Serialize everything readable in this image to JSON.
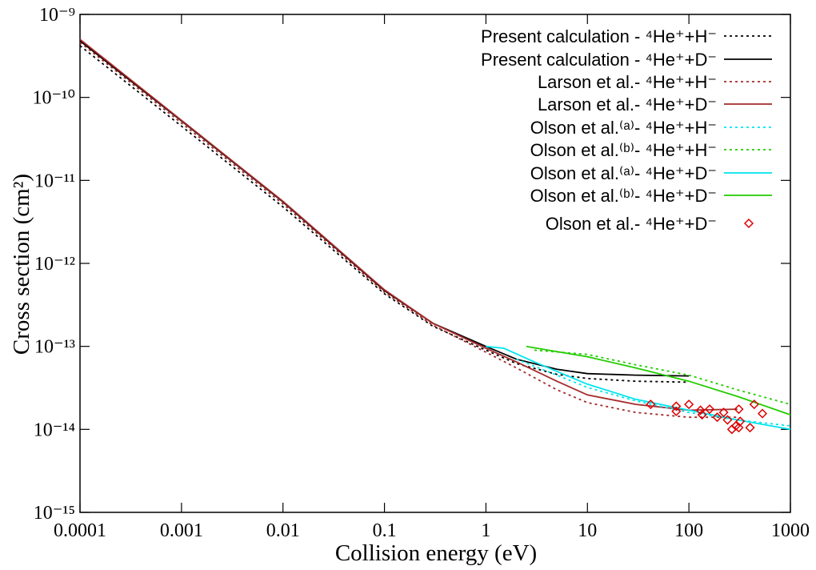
{
  "chart_data": {
    "type": "line",
    "xlabel": "Collision energy (eV)",
    "ylabel": "Cross section (cm²)",
    "xscale": "log",
    "yscale": "log",
    "xlim": [
      0.0001,
      1000
    ],
    "ylim": [
      1e-15,
      1e-09
    ],
    "xticks": [
      0.0001,
      0.001,
      0.01,
      0.1,
      1,
      10,
      100,
      1000
    ],
    "yticks": [
      {
        "value": 1e-15,
        "label": "10⁻¹⁵"
      },
      {
        "value": 1e-14,
        "label": "10⁻¹⁴"
      },
      {
        "value": 1e-13,
        "label": "10⁻¹³"
      },
      {
        "value": 1e-12,
        "label": "10⁻¹²"
      },
      {
        "value": 1e-11,
        "label": "10⁻¹¹"
      },
      {
        "value": 1e-10,
        "label": "10⁻¹⁰"
      },
      {
        "value": 1e-09,
        "label": "10⁻⁹"
      }
    ],
    "legend": "top-right",
    "series": [
      {
        "name": "Present calculation - ⁴He⁺+H⁻",
        "color": "#000000",
        "style": "dotted",
        "x": [
          0.0001,
          0.001,
          0.01,
          0.1,
          0.3,
          1,
          2,
          5,
          10,
          30,
          100
        ],
        "values": [
          4.2e-10,
          4.5e-11,
          4.8e-12,
          4.3e-13,
          1.75e-13,
          9e-14,
          6.2e-14,
          4.6e-14,
          4.1e-14,
          3.8e-14,
          3.7e-14
        ]
      },
      {
        "name": "Present calculation - ⁴He⁺+D⁻",
        "color": "#000000",
        "style": "solid",
        "x": [
          0.0001,
          0.001,
          0.01,
          0.1,
          0.3,
          1,
          2,
          5,
          10,
          30,
          100
        ],
        "values": [
          4.8e-10,
          5.2e-11,
          5.5e-12,
          4.7e-13,
          1.9e-13,
          1e-13,
          7e-14,
          5.3e-14,
          4.7e-14,
          4.5e-14,
          4.4e-14
        ]
      },
      {
        "name": "Larson et al.- ⁴He⁺+H⁻",
        "color": "#a52a2a",
        "style": "dotted",
        "x": [
          0.0001,
          0.001,
          0.01,
          0.1,
          0.3,
          1,
          2,
          5,
          10,
          30,
          100,
          300
        ],
        "values": [
          4.6e-10,
          4.9e-11,
          5.2e-12,
          4.5e-13,
          1.8e-13,
          8.5e-14,
          5.5e-14,
          3e-14,
          2.1e-14,
          1.6e-14,
          1.4e-14,
          1.4e-14
        ]
      },
      {
        "name": "Larson et al.- ⁴He⁺+D⁻",
        "color": "#a52a2a",
        "style": "solid",
        "x": [
          0.0001,
          0.001,
          0.01,
          0.1,
          0.3,
          1,
          2,
          5,
          10,
          30,
          100,
          300
        ],
        "values": [
          5e-10,
          5.3e-11,
          5.6e-12,
          4.8e-13,
          1.9e-13,
          9.5e-14,
          6.5e-14,
          3.8e-14,
          2.6e-14,
          2e-14,
          1.7e-14,
          1.75e-14
        ]
      },
      {
        "name": "Olson et al.⁽ᵃ⁾- ⁴He⁺+H⁻",
        "color": "#00e5ee",
        "style": "dotted",
        "x": [
          2,
          5,
          10,
          30,
          100,
          300,
          1000
        ],
        "values": [
          7e-14,
          4.5e-14,
          3.2e-14,
          2.2e-14,
          1.6e-14,
          1.3e-14,
          1.1e-14
        ]
      },
      {
        "name": "Olson et al.⁽ᵇ⁾- ⁴He⁺+H⁻",
        "color": "#22cc00",
        "style": "dotted",
        "x": [
          3,
          10,
          30,
          100,
          300,
          1000
        ],
        "values": [
          9e-14,
          8e-14,
          6e-14,
          4.5e-14,
          3e-14,
          2e-14
        ]
      },
      {
        "name": "Olson et al.⁽ᵃ⁾- ⁴He⁺+D⁻",
        "color": "#00e5ee",
        "style": "solid",
        "x": [
          1,
          1.5,
          3,
          10,
          30,
          100,
          300,
          1000
        ],
        "values": [
          1e-13,
          9.5e-14,
          6.5e-14,
          3.5e-14,
          2.3e-14,
          1.7e-14,
          1.3e-14,
          1e-14
        ]
      },
      {
        "name": "Olson et al.⁽ᵇ⁾- ⁴He⁺+D⁻",
        "color": "#22cc00",
        "style": "solid",
        "x": [
          2.5,
          10,
          30,
          100,
          300,
          1000
        ],
        "values": [
          1e-13,
          7.5e-14,
          5.5e-14,
          3.8e-14,
          2.5e-14,
          1.5e-14
        ]
      },
      {
        "name": "Olson et al.- ⁴He⁺+D⁻",
        "color": "#dd0000",
        "style": "points",
        "x": [
          42,
          75,
          75,
          100,
          130,
          135,
          160,
          190,
          220,
          240,
          265,
          290,
          310,
          320,
          310,
          400,
          440,
          530
        ],
        "values": [
          2e-14,
          1.9e-14,
          1.65e-14,
          2e-14,
          1.7e-14,
          1.5e-14,
          1.75e-14,
          1.4e-14,
          1.6e-14,
          1.3e-14,
          1e-14,
          1.1e-14,
          1.05e-14,
          1.25e-14,
          1.75e-14,
          1.05e-14,
          2e-14,
          1.55e-14
        ]
      }
    ]
  }
}
